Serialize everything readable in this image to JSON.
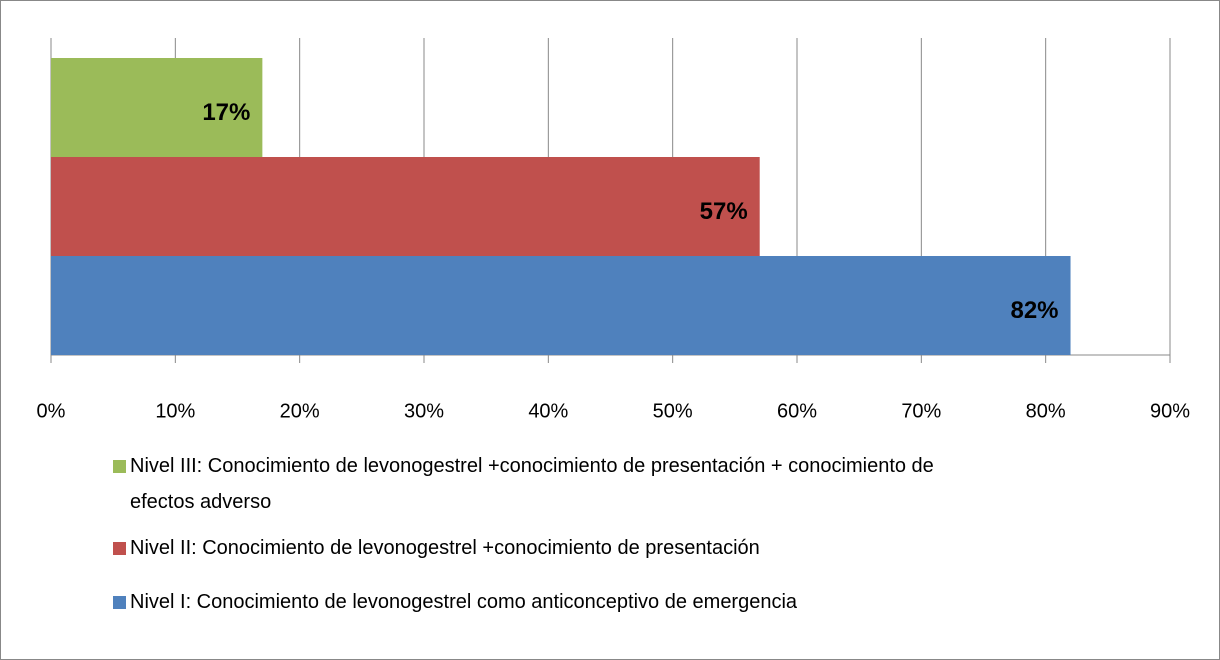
{
  "chart_data": {
    "type": "bar",
    "orientation": "horizontal",
    "series": [
      {
        "name": "Nivel I: Conocimiento de levonogestrel como anticonceptivo de emergencia",
        "color": "#4f81bd",
        "values": [
          82
        ],
        "value_labels": [
          "82%"
        ]
      },
      {
        "name": "Nivel II: Conocimiento de levonogestrel +conocimiento de presentación",
        "color": "#c0504d",
        "values": [
          57
        ],
        "value_labels": [
          "57%"
        ]
      },
      {
        "name": "Nivel III: Conocimiento de levonogestrel +conocimiento de presentación + conocimiento de efectos adverso",
        "color": "#9bbb59",
        "values": [
          17
        ],
        "value_labels": [
          "17%"
        ]
      }
    ],
    "xlim": [
      0,
      90
    ],
    "xticks": [
      {
        "value": 0,
        "label": "0%"
      },
      {
        "value": 10,
        "label": "10%"
      },
      {
        "value": 20,
        "label": "20%"
      },
      {
        "value": 30,
        "label": "30%"
      },
      {
        "value": 40,
        "label": "40%"
      },
      {
        "value": 50,
        "label": "50%"
      },
      {
        "value": 60,
        "label": "60%"
      },
      {
        "value": 70,
        "label": "70%"
      },
      {
        "value": 80,
        "label": "80%"
      },
      {
        "value": 90,
        "label": "90%"
      }
    ],
    "grid": true,
    "legend": "bottom"
  }
}
